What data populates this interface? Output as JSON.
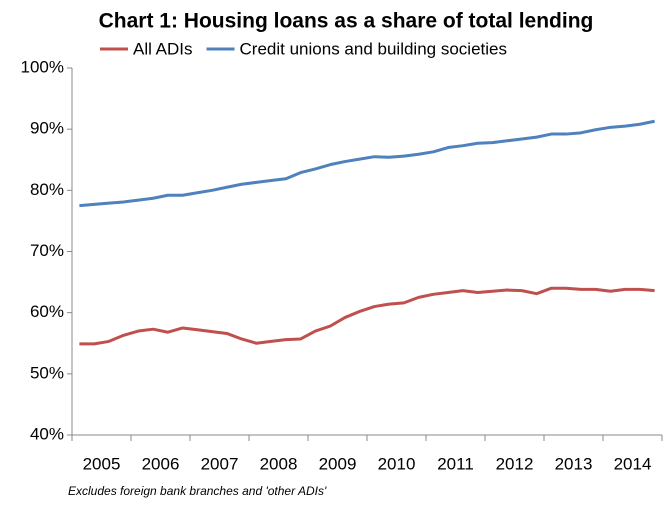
{
  "chart_data": {
    "type": "line",
    "title": "Chart 1: Housing loans as a share of total lending",
    "note": "Excludes foreign bank branches and 'other ADIs'",
    "categories": [
      null,
      "2005",
      null,
      null,
      null,
      "2006",
      null,
      null,
      null,
      "2007",
      null,
      null,
      null,
      "2008",
      null,
      null,
      null,
      "2009",
      null,
      null,
      null,
      "2010",
      null,
      null,
      null,
      "2011",
      null,
      null,
      null,
      "2012",
      null,
      null,
      null,
      "2013",
      null,
      null,
      null,
      "2014",
      null,
      null
    ],
    "series": [
      {
        "name": "All ADIs",
        "color": "#c0504d",
        "values": [
          54.9,
          54.9,
          55.3,
          56.3,
          57.0,
          57.3,
          56.8,
          57.5,
          57.2,
          56.9,
          56.6,
          55.7,
          55.0,
          55.3,
          55.6,
          55.7,
          57.0,
          57.8,
          59.2,
          60.2,
          61.0,
          61.4,
          61.6,
          62.5,
          63.0,
          63.3,
          63.6,
          63.3,
          63.5,
          63.7,
          63.6,
          63.1,
          64.0,
          64.0,
          63.8,
          63.8,
          63.5,
          63.8,
          63.8,
          63.6
        ]
      },
      {
        "name": "Credit unions and building societies",
        "color": "#4f81bd",
        "values": [
          77.5,
          77.7,
          77.9,
          78.1,
          78.4,
          78.7,
          79.2,
          79.2,
          79.6,
          80.0,
          80.5,
          81.0,
          81.3,
          81.6,
          81.9,
          82.9,
          83.5,
          84.2,
          84.7,
          85.1,
          85.5,
          85.4,
          85.6,
          85.9,
          86.3,
          87.0,
          87.3,
          87.7,
          87.8,
          88.1,
          88.4,
          88.7,
          89.2,
          89.2,
          89.4,
          89.9,
          90.3,
          90.5,
          90.8,
          91.3
        ]
      }
    ],
    "ylim": [
      40,
      100
    ],
    "yticks": [
      {
        "value": 40,
        "label": "40%"
      },
      {
        "value": 50,
        "label": "50%"
      },
      {
        "value": 60,
        "label": "60%"
      },
      {
        "value": 70,
        "label": "70%"
      },
      {
        "value": 80,
        "label": "80%"
      },
      {
        "value": 90,
        "label": "90%"
      },
      {
        "value": 100,
        "label": "100%"
      }
    ],
    "grid": false
  }
}
